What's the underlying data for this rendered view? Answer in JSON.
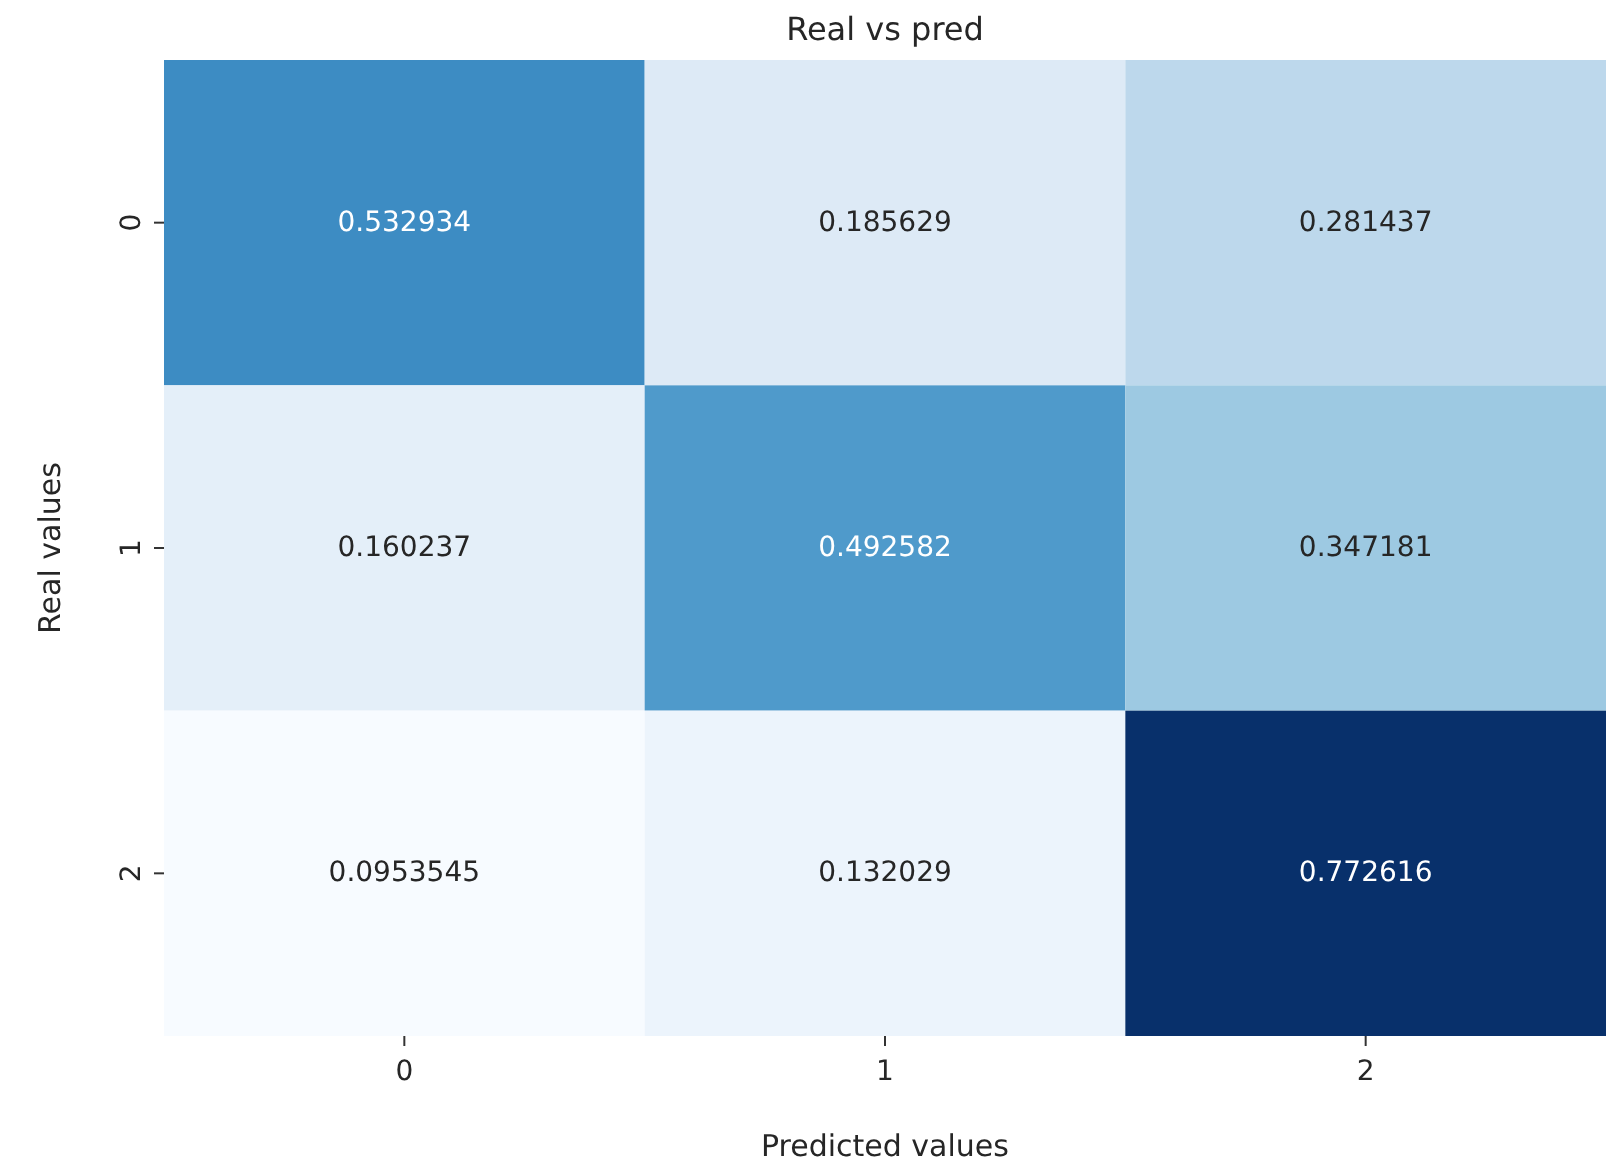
{
  "chart_data": {
    "type": "heatmap",
    "title": "Real vs pred",
    "xlabel": "Predicted values",
    "ylabel": "Real values",
    "categories": [
      "0",
      "1",
      "2"
    ],
    "y_categories": [
      "0",
      "1",
      "2"
    ],
    "cells": [
      [
        0.532934,
        0.185629,
        0.281437
      ],
      [
        0.160237,
        0.492582,
        0.347181
      ],
      [
        0.0953545,
        0.132029,
        0.772616
      ]
    ],
    "data_labels": true
  }
}
